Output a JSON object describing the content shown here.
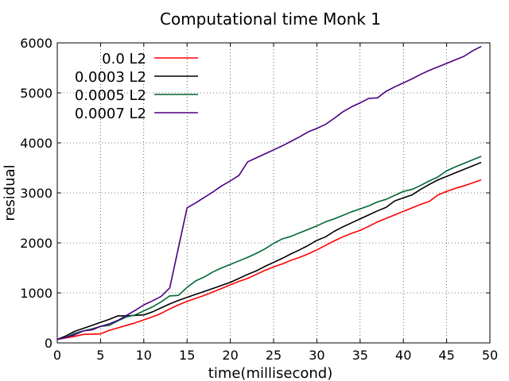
{
  "chart_data": {
    "type": "line",
    "title": "Computational time Monk 1",
    "xlabel": "time(millisecond)",
    "ylabel": "residual",
    "xlim": [
      0,
      50
    ],
    "ylim": [
      0,
      6000
    ],
    "xticks": [
      0,
      5,
      10,
      15,
      20,
      25,
      30,
      35,
      40,
      45,
      50
    ],
    "yticks": [
      0,
      1000,
      2000,
      3000,
      4000,
      5000,
      6000
    ],
    "grid": true,
    "legend_position": "top-left",
    "series": [
      {
        "name": "0.0 L2",
        "color": "#ff0000",
        "points": [
          [
            0,
            70
          ],
          [
            1,
            100
          ],
          [
            2,
            130
          ],
          [
            3,
            170
          ],
          [
            4,
            175
          ],
          [
            5,
            180
          ],
          [
            6,
            250
          ],
          [
            7,
            300
          ],
          [
            8,
            350
          ],
          [
            9,
            400
          ],
          [
            10,
            460
          ],
          [
            11,
            520
          ],
          [
            12,
            590
          ],
          [
            13,
            680
          ],
          [
            14,
            760
          ],
          [
            15,
            830
          ],
          [
            16,
            890
          ],
          [
            17,
            950
          ],
          [
            18,
            1020
          ],
          [
            19,
            1090
          ],
          [
            20,
            1160
          ],
          [
            21,
            1230
          ],
          [
            22,
            1290
          ],
          [
            23,
            1370
          ],
          [
            24,
            1450
          ],
          [
            25,
            1520
          ],
          [
            26,
            1580
          ],
          [
            27,
            1650
          ],
          [
            28,
            1710
          ],
          [
            29,
            1780
          ],
          [
            30,
            1860
          ],
          [
            31,
            1950
          ],
          [
            32,
            2040
          ],
          [
            33,
            2120
          ],
          [
            34,
            2190
          ],
          [
            35,
            2250
          ],
          [
            36,
            2330
          ],
          [
            37,
            2420
          ],
          [
            38,
            2490
          ],
          [
            39,
            2560
          ],
          [
            40,
            2630
          ],
          [
            41,
            2700
          ],
          [
            42,
            2770
          ],
          [
            43,
            2830
          ],
          [
            44,
            2960
          ],
          [
            45,
            3030
          ],
          [
            46,
            3090
          ],
          [
            47,
            3140
          ],
          [
            48,
            3200
          ],
          [
            49,
            3260
          ]
        ]
      },
      {
        "name": "0.0003 L2",
        "color": "#000000",
        "points": [
          [
            0,
            70
          ],
          [
            1,
            140
          ],
          [
            2,
            230
          ],
          [
            3,
            290
          ],
          [
            4,
            350
          ],
          [
            5,
            410
          ],
          [
            6,
            470
          ],
          [
            7,
            540
          ],
          [
            8,
            540
          ],
          [
            9,
            550
          ],
          [
            10,
            560
          ],
          [
            11,
            620
          ],
          [
            12,
            700
          ],
          [
            13,
            780
          ],
          [
            14,
            850
          ],
          [
            15,
            910
          ],
          [
            16,
            970
          ],
          [
            17,
            1030
          ],
          [
            18,
            1090
          ],
          [
            19,
            1150
          ],
          [
            20,
            1210
          ],
          [
            21,
            1290
          ],
          [
            22,
            1370
          ],
          [
            23,
            1440
          ],
          [
            24,
            1530
          ],
          [
            25,
            1610
          ],
          [
            26,
            1690
          ],
          [
            27,
            1780
          ],
          [
            28,
            1860
          ],
          [
            29,
            1950
          ],
          [
            30,
            2050
          ],
          [
            31,
            2120
          ],
          [
            32,
            2230
          ],
          [
            33,
            2320
          ],
          [
            34,
            2400
          ],
          [
            35,
            2480
          ],
          [
            36,
            2560
          ],
          [
            37,
            2640
          ],
          [
            38,
            2710
          ],
          [
            39,
            2840
          ],
          [
            40,
            2900
          ],
          [
            41,
            2960
          ],
          [
            42,
            3070
          ],
          [
            43,
            3170
          ],
          [
            44,
            3260
          ],
          [
            45,
            3330
          ],
          [
            46,
            3400
          ],
          [
            47,
            3470
          ],
          [
            48,
            3540
          ],
          [
            49,
            3610
          ]
        ]
      },
      {
        "name": "0.0005 L2",
        "color": "#006633",
        "points": [
          [
            0,
            70
          ],
          [
            1,
            110
          ],
          [
            2,
            190
          ],
          [
            3,
            240
          ],
          [
            4,
            280
          ],
          [
            5,
            330
          ],
          [
            6,
            350
          ],
          [
            7,
            440
          ],
          [
            8,
            520
          ],
          [
            9,
            560
          ],
          [
            10,
            640
          ],
          [
            11,
            720
          ],
          [
            12,
            820
          ],
          [
            13,
            940
          ],
          [
            14,
            950
          ],
          [
            15,
            1110
          ],
          [
            16,
            1240
          ],
          [
            17,
            1320
          ],
          [
            18,
            1420
          ],
          [
            19,
            1500
          ],
          [
            20,
            1570
          ],
          [
            21,
            1640
          ],
          [
            22,
            1710
          ],
          [
            23,
            1790
          ],
          [
            24,
            1880
          ],
          [
            25,
            1990
          ],
          [
            26,
            2080
          ],
          [
            27,
            2130
          ],
          [
            28,
            2200
          ],
          [
            29,
            2270
          ],
          [
            30,
            2340
          ],
          [
            31,
            2420
          ],
          [
            32,
            2480
          ],
          [
            33,
            2550
          ],
          [
            34,
            2620
          ],
          [
            35,
            2680
          ],
          [
            36,
            2740
          ],
          [
            37,
            2820
          ],
          [
            38,
            2870
          ],
          [
            39,
            2950
          ],
          [
            40,
            3030
          ],
          [
            41,
            3070
          ],
          [
            42,
            3150
          ],
          [
            43,
            3240
          ],
          [
            44,
            3320
          ],
          [
            45,
            3440
          ],
          [
            46,
            3520
          ],
          [
            47,
            3590
          ],
          [
            48,
            3660
          ],
          [
            49,
            3730
          ]
        ]
      },
      {
        "name": "0.0007 L2",
        "color": "#4b0082",
        "points": [
          [
            0,
            70
          ],
          [
            1,
            110
          ],
          [
            2,
            160
          ],
          [
            3,
            240
          ],
          [
            4,
            260
          ],
          [
            5,
            330
          ],
          [
            6,
            380
          ],
          [
            7,
            450
          ],
          [
            8,
            550
          ],
          [
            9,
            650
          ],
          [
            10,
            760
          ],
          [
            11,
            840
          ],
          [
            12,
            930
          ],
          [
            13,
            1100
          ],
          [
            14,
            1900
          ],
          [
            15,
            2700
          ],
          [
            16,
            2800
          ],
          [
            17,
            2910
          ],
          [
            18,
            3020
          ],
          [
            19,
            3140
          ],
          [
            20,
            3240
          ],
          [
            21,
            3350
          ],
          [
            22,
            3620
          ],
          [
            23,
            3700
          ],
          [
            24,
            3780
          ],
          [
            25,
            3860
          ],
          [
            26,
            3940
          ],
          [
            27,
            4030
          ],
          [
            28,
            4120
          ],
          [
            29,
            4220
          ],
          [
            30,
            4290
          ],
          [
            31,
            4370
          ],
          [
            32,
            4490
          ],
          [
            33,
            4620
          ],
          [
            34,
            4720
          ],
          [
            35,
            4800
          ],
          [
            36,
            4890
          ],
          [
            37,
            4900
          ],
          [
            38,
            5030
          ],
          [
            39,
            5120
          ],
          [
            40,
            5200
          ],
          [
            41,
            5280
          ],
          [
            42,
            5370
          ],
          [
            43,
            5450
          ],
          [
            44,
            5520
          ],
          [
            45,
            5590
          ],
          [
            46,
            5660
          ],
          [
            47,
            5730
          ],
          [
            48,
            5840
          ],
          [
            49,
            5930
          ]
        ]
      }
    ]
  }
}
